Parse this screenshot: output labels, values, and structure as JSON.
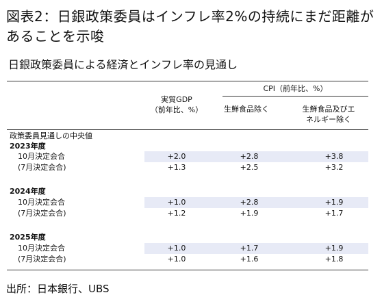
{
  "title": "図表2：日銀政策委員はインフレ率2%の持続にまだ距離があることを示唆",
  "subtitle": "日銀政策委員による経済とインフレ率の見通し",
  "table": {
    "cpi_header": "CPI（前年比、%）",
    "col1_header": [
      "実質GDP",
      "（前年比、%）"
    ],
    "col2_header": [
      "生鮮食品除く"
    ],
    "col3_header": [
      "生鮮食品及びエ",
      "ネルギー除く"
    ],
    "section_label": "政策委員見通しの中央値",
    "years": [
      {
        "label": "2023年度",
        "rows": [
          {
            "label": "10月決定会合",
            "gdp": "+2.0",
            "core": "+2.8",
            "core_core": "+3.8"
          },
          {
            "label": "(7月決定会合)",
            "gdp": "+1.3",
            "core": "+2.5",
            "core_core": "+3.2"
          }
        ]
      },
      {
        "label": "2024年度",
        "rows": [
          {
            "label": "10月決定会合",
            "gdp": "+1.0",
            "core": "+2.8",
            "core_core": "+1.9"
          },
          {
            "label": "(7月決定会合)",
            "gdp": "+1.2",
            "core": "+1.9",
            "core_core": "+1.7"
          }
        ]
      },
      {
        "label": "2025年度",
        "rows": [
          {
            "label": "10月決定会合",
            "gdp": "+1.0",
            "core": "+1.7",
            "core_core": "+1.9"
          },
          {
            "label": "(7月決定会合)",
            "gdp": "+1.0",
            "core": "+1.6",
            "core_core": "+1.8"
          }
        ]
      }
    ]
  },
  "source": "出所：日本銀行、UBS"
}
